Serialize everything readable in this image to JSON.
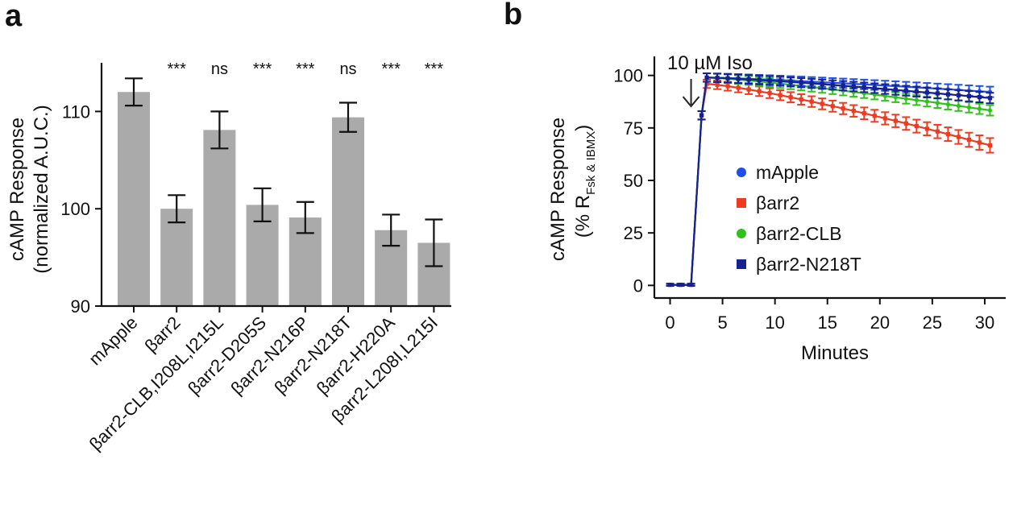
{
  "colors": {
    "bar": "#aaaaaa",
    "axis": "#111111",
    "mApple": "#1f4fe8",
    "barr2": "#ef3a1f",
    "barr2_CLB": "#2ec21a",
    "barr2_N218T": "#16208f"
  },
  "chart_data": [
    {
      "panel": "a",
      "type": "bar",
      "ylabel_line1": "cAMP Response",
      "ylabel_line2": "(normalized A.U.C.)",
      "ylim": [
        90,
        115
      ],
      "yticks": [
        90,
        100,
        110
      ],
      "categories": [
        "mApple",
        "βarr2",
        "βarr2-CLB,I208L,I215L",
        "βarr2-D205S",
        "βarr2-N216P",
        "βarr2-N218T",
        "βarr2-H220A",
        "βarr2-L208I,L215I"
      ],
      "values": [
        112.0,
        100.0,
        108.1,
        100.4,
        99.1,
        109.4,
        97.8,
        96.5
      ],
      "errors": [
        1.4,
        1.4,
        1.9,
        1.7,
        1.6,
        1.5,
        1.6,
        2.4
      ],
      "significance": [
        "",
        "***",
        "ns",
        "***",
        "***",
        "ns",
        "***",
        "***"
      ]
    },
    {
      "panel": "b",
      "type": "line",
      "ylabel_line1": "cAMP Response",
      "ylabel_line2_prefix": "(% R",
      "ylabel_line2_sub": "Fsk & IBMX",
      "ylabel_line2_suffix": ")",
      "xlabel": "Minutes",
      "xlim": [
        -1.5,
        32
      ],
      "ylim": [
        -6,
        106
      ],
      "xticks": [
        0,
        5,
        10,
        15,
        20,
        25,
        30
      ],
      "yticks": [
        0,
        25,
        50,
        75,
        100
      ],
      "annotation": "10 µM Iso",
      "annotation_x": 2,
      "series": [
        {
          "name": "mApple",
          "key": "mApple",
          "marker": "circle",
          "end": 92,
          "end_err": 2.5
        },
        {
          "name": "βarr2",
          "key": "barr2",
          "marker": "square",
          "end": 66,
          "end_err": 3.5
        },
        {
          "name": "βarr2-CLB",
          "key": "barr2_CLB",
          "marker": "circle",
          "end": 83,
          "end_err": 2.5
        },
        {
          "name": "βarr2-N218T",
          "key": "barr2_N218T",
          "marker": "square",
          "end": 89,
          "end_err": 2.5
        }
      ]
    }
  ]
}
